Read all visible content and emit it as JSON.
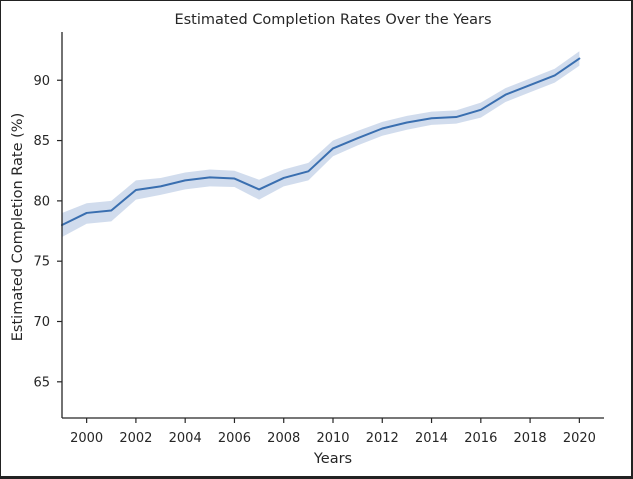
{
  "chart_data": {
    "type": "line",
    "title": "Estimated Completion Rates Over the Years",
    "xlabel": "Years",
    "ylabel": "Estimated Completion Rate (%)",
    "xlim": [
      1999,
      2021
    ],
    "ylim": [
      62,
      94
    ],
    "x_ticks": [
      2000,
      2002,
      2004,
      2006,
      2008,
      2010,
      2012,
      2014,
      2016,
      2018,
      2020
    ],
    "y_ticks": [
      65,
      70,
      75,
      80,
      85,
      90
    ],
    "grid": false,
    "line_color": "#3a6fb0",
    "band_color": "#c9d6ea",
    "series": [
      {
        "x": [
          1999,
          2000,
          2001,
          2002,
          2003,
          2004,
          2005,
          2006,
          2007,
          2008,
          2009,
          2010,
          2011,
          2012,
          2013,
          2014,
          2015,
          2016,
          2017,
          2018,
          2019,
          2020
        ],
        "values": [
          78.0,
          79.0,
          79.2,
          80.9,
          81.2,
          81.7,
          81.95,
          81.85,
          80.95,
          81.9,
          82.45,
          84.35,
          85.2,
          86.0,
          86.5,
          86.85,
          86.95,
          87.55,
          88.8,
          89.6,
          90.4,
          91.8
        ],
        "lower": [
          77.0,
          78.1,
          78.3,
          80.1,
          80.5,
          80.95,
          81.2,
          81.15,
          80.1,
          81.2,
          81.7,
          83.7,
          84.6,
          85.4,
          85.9,
          86.3,
          86.4,
          86.9,
          88.2,
          89.0,
          89.8,
          91.2
        ],
        "upper": [
          79.0,
          79.8,
          80.0,
          81.7,
          81.9,
          82.35,
          82.6,
          82.5,
          81.75,
          82.6,
          83.15,
          85.0,
          85.8,
          86.55,
          87.05,
          87.4,
          87.5,
          88.15,
          89.35,
          90.15,
          90.95,
          92.4
        ]
      }
    ]
  }
}
